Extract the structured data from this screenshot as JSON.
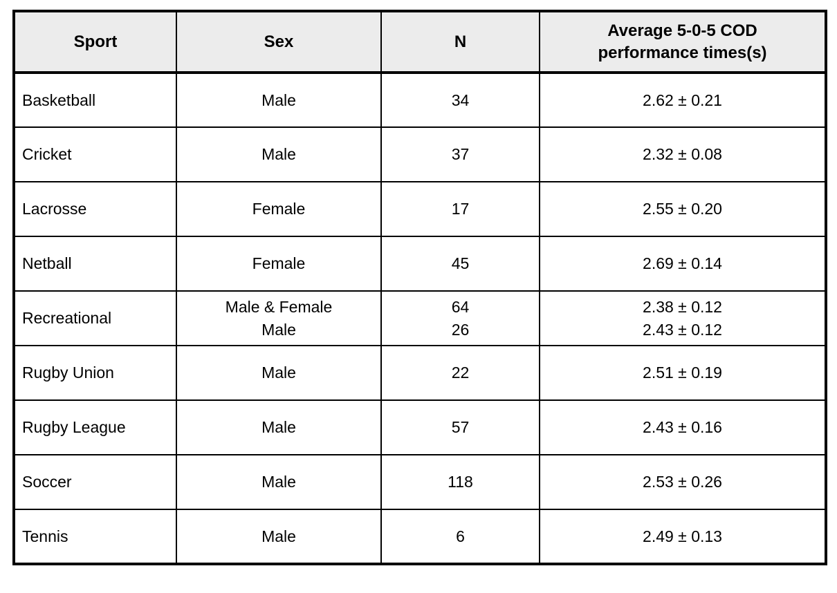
{
  "table": {
    "columns": [
      {
        "key": "sport",
        "label": "Sport"
      },
      {
        "key": "sex",
        "label": "Sex"
      },
      {
        "key": "n",
        "label": "N"
      },
      {
        "key": "time",
        "label": "Average 5-0-5 COD\nperformance times(s)"
      }
    ],
    "rows": [
      {
        "sport": "Basketball",
        "sex": "Male",
        "n": "34",
        "time": "2.62 ± 0.21"
      },
      {
        "sport": "Cricket",
        "sex": "Male",
        "n": "37",
        "time": "2.32 ± 0.08"
      },
      {
        "sport": "Lacrosse",
        "sex": "Female",
        "n": "17",
        "time": "2.55 ± 0.20"
      },
      {
        "sport": "Netball",
        "sex": "Female",
        "n": "45",
        "time": "2.69 ± 0.14"
      },
      {
        "sport": "Recreational",
        "sex": "Male & Female\nMale",
        "n": "64\n26",
        "time": "2.38 ± 0.12\n2.43 ± 0.12"
      },
      {
        "sport": "Rugby Union",
        "sex": "Male",
        "n": "22",
        "time": "2.51 ± 0.19"
      },
      {
        "sport": "Rugby League",
        "sex": "Male",
        "n": "57",
        "time": "2.43 ± 0.16"
      },
      {
        "sport": "Soccer",
        "sex": "Male",
        "n": "118",
        "time": "2.53 ± 0.26"
      },
      {
        "sport": "Tennis",
        "sex": "Male",
        "n": "6",
        "time": "2.49 ± 0.13"
      }
    ],
    "colors": {
      "header_bg": "#ececec",
      "border": "#000000",
      "text": "#000000",
      "row_bg": "#ffffff"
    }
  }
}
